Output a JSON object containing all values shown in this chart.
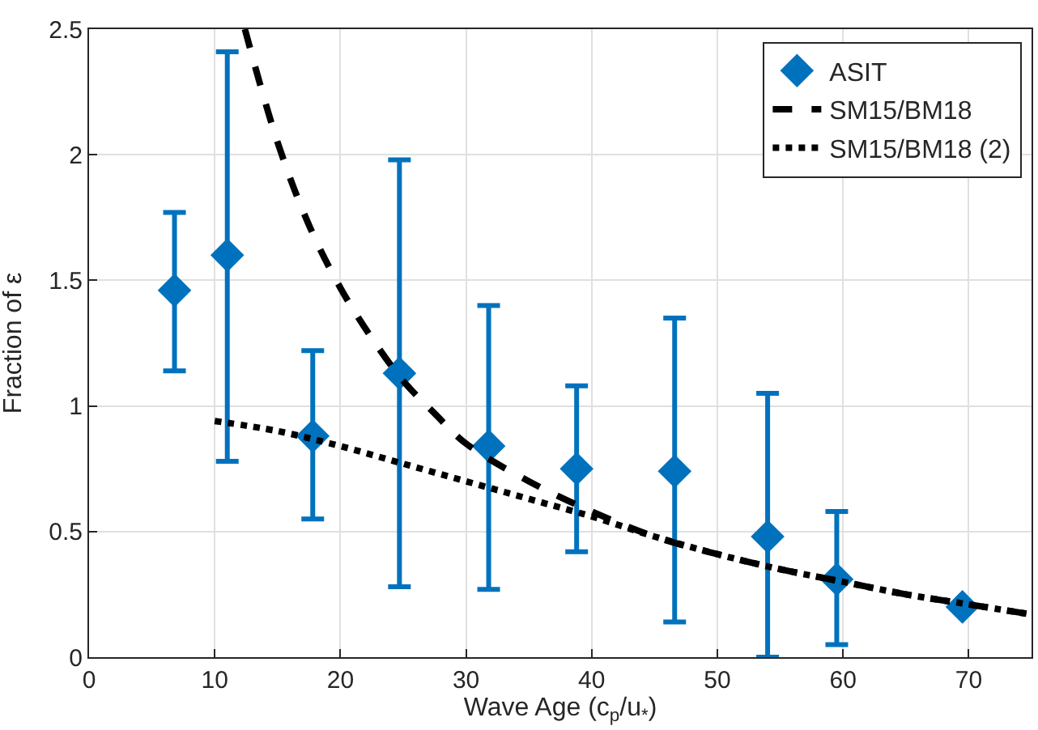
{
  "chart_data": {
    "type": "scatter",
    "xlabel": "Wave Age (c$_{p}$/u$_{*}$)",
    "ylabel": "Fraction of ε",
    "xlim": [
      0,
      75
    ],
    "xticks": [
      0,
      10,
      20,
      30,
      40,
      50,
      60,
      70
    ],
    "ylim": [
      0,
      2.5
    ],
    "yticks": [
      0,
      0.5,
      1,
      1.5,
      2,
      2.5
    ],
    "grid": true,
    "legend": "top right",
    "series": [
      {
        "name": "ASIT",
        "color": "#0072bd",
        "marker": "diamond",
        "x": [
          6.8,
          11,
          17.8,
          24.7,
          31.8,
          38.8,
          46.6,
          54,
          59.5,
          69.5
        ],
        "values": [
          1.46,
          1.6,
          0.88,
          1.13,
          0.84,
          0.75,
          0.74,
          0.48,
          0.31,
          0.2
        ],
        "errors": [
          [
            1.14,
            1.77
          ],
          [
            0.78,
            2.41
          ],
          [
            0.55,
            1.22
          ],
          [
            0.28,
            1.98
          ],
          [
            0.27,
            1.4
          ],
          [
            0.42,
            1.08
          ],
          [
            0.14,
            1.35
          ],
          [
            0,
            1.05
          ],
          [
            0.05,
            0.58
          ],
          null
        ]
      },
      {
        "name": "SM15/BM18",
        "type": "line",
        "color": "#000000",
        "line_style": "dashed",
        "marker": "none",
        "x": [
          12.4,
          15,
          17.5,
          20,
          22.5,
          25,
          27.5,
          30,
          35,
          40,
          45,
          50,
          55,
          60,
          65,
          70,
          75
        ],
        "values": [
          2.5,
          2.05,
          1.72,
          1.47,
          1.27,
          1.1,
          0.97,
          0.85,
          0.7,
          0.58,
          0.48,
          0.41,
          0.35,
          0.3,
          0.25,
          0.21,
          0.17
        ]
      },
      {
        "name": "SM15/BM18 (2)",
        "type": "line",
        "color": "#000000",
        "line_style": "dotted",
        "marker": "none",
        "x": [
          10,
          15,
          20,
          25,
          30,
          35,
          40,
          45,
          50,
          55,
          60,
          65,
          70,
          75
        ],
        "values": [
          0.94,
          0.9,
          0.84,
          0.77,
          0.7,
          0.63,
          0.56,
          0.48,
          0.41,
          0.35,
          0.3,
          0.25,
          0.21,
          0.17
        ]
      }
    ]
  }
}
